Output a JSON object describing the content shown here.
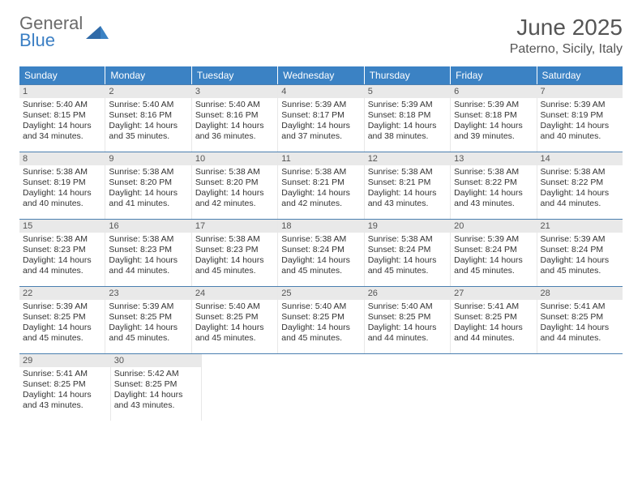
{
  "logo": {
    "text1": "General",
    "text2": "Blue"
  },
  "title": "June 2025",
  "location": "Paterno, Sicily, Italy",
  "colors": {
    "header_bg": "#3b82c4",
    "header_text": "#ffffff",
    "week_divider": "#4a7fb0",
    "daynum_bg": "#e9e9e9",
    "logo_gray": "#6a6a6a",
    "logo_blue": "#3b7fc4"
  },
  "daysOfWeek": [
    "Sunday",
    "Monday",
    "Tuesday",
    "Wednesday",
    "Thursday",
    "Friday",
    "Saturday"
  ],
  "weeks": [
    [
      {
        "n": "1",
        "sr": "5:40 AM",
        "ss": "8:15 PM",
        "dl": "14 hours and 34 minutes."
      },
      {
        "n": "2",
        "sr": "5:40 AM",
        "ss": "8:16 PM",
        "dl": "14 hours and 35 minutes."
      },
      {
        "n": "3",
        "sr": "5:40 AM",
        "ss": "8:16 PM",
        "dl": "14 hours and 36 minutes."
      },
      {
        "n": "4",
        "sr": "5:39 AM",
        "ss": "8:17 PM",
        "dl": "14 hours and 37 minutes."
      },
      {
        "n": "5",
        "sr": "5:39 AM",
        "ss": "8:18 PM",
        "dl": "14 hours and 38 minutes."
      },
      {
        "n": "6",
        "sr": "5:39 AM",
        "ss": "8:18 PM",
        "dl": "14 hours and 39 minutes."
      },
      {
        "n": "7",
        "sr": "5:39 AM",
        "ss": "8:19 PM",
        "dl": "14 hours and 40 minutes."
      }
    ],
    [
      {
        "n": "8",
        "sr": "5:38 AM",
        "ss": "8:19 PM",
        "dl": "14 hours and 40 minutes."
      },
      {
        "n": "9",
        "sr": "5:38 AM",
        "ss": "8:20 PM",
        "dl": "14 hours and 41 minutes."
      },
      {
        "n": "10",
        "sr": "5:38 AM",
        "ss": "8:20 PM",
        "dl": "14 hours and 42 minutes."
      },
      {
        "n": "11",
        "sr": "5:38 AM",
        "ss": "8:21 PM",
        "dl": "14 hours and 42 minutes."
      },
      {
        "n": "12",
        "sr": "5:38 AM",
        "ss": "8:21 PM",
        "dl": "14 hours and 43 minutes."
      },
      {
        "n": "13",
        "sr": "5:38 AM",
        "ss": "8:22 PM",
        "dl": "14 hours and 43 minutes."
      },
      {
        "n": "14",
        "sr": "5:38 AM",
        "ss": "8:22 PM",
        "dl": "14 hours and 44 minutes."
      }
    ],
    [
      {
        "n": "15",
        "sr": "5:38 AM",
        "ss": "8:23 PM",
        "dl": "14 hours and 44 minutes."
      },
      {
        "n": "16",
        "sr": "5:38 AM",
        "ss": "8:23 PM",
        "dl": "14 hours and 44 minutes."
      },
      {
        "n": "17",
        "sr": "5:38 AM",
        "ss": "8:23 PM",
        "dl": "14 hours and 45 minutes."
      },
      {
        "n": "18",
        "sr": "5:38 AM",
        "ss": "8:24 PM",
        "dl": "14 hours and 45 minutes."
      },
      {
        "n": "19",
        "sr": "5:38 AM",
        "ss": "8:24 PM",
        "dl": "14 hours and 45 minutes."
      },
      {
        "n": "20",
        "sr": "5:39 AM",
        "ss": "8:24 PM",
        "dl": "14 hours and 45 minutes."
      },
      {
        "n": "21",
        "sr": "5:39 AM",
        "ss": "8:24 PM",
        "dl": "14 hours and 45 minutes."
      }
    ],
    [
      {
        "n": "22",
        "sr": "5:39 AM",
        "ss": "8:25 PM",
        "dl": "14 hours and 45 minutes."
      },
      {
        "n": "23",
        "sr": "5:39 AM",
        "ss": "8:25 PM",
        "dl": "14 hours and 45 minutes."
      },
      {
        "n": "24",
        "sr": "5:40 AM",
        "ss": "8:25 PM",
        "dl": "14 hours and 45 minutes."
      },
      {
        "n": "25",
        "sr": "5:40 AM",
        "ss": "8:25 PM",
        "dl": "14 hours and 45 minutes."
      },
      {
        "n": "26",
        "sr": "5:40 AM",
        "ss": "8:25 PM",
        "dl": "14 hours and 44 minutes."
      },
      {
        "n": "27",
        "sr": "5:41 AM",
        "ss": "8:25 PM",
        "dl": "14 hours and 44 minutes."
      },
      {
        "n": "28",
        "sr": "5:41 AM",
        "ss": "8:25 PM",
        "dl": "14 hours and 44 minutes."
      }
    ],
    [
      {
        "n": "29",
        "sr": "5:41 AM",
        "ss": "8:25 PM",
        "dl": "14 hours and 43 minutes."
      },
      {
        "n": "30",
        "sr": "5:42 AM",
        "ss": "8:25 PM",
        "dl": "14 hours and 43 minutes."
      },
      null,
      null,
      null,
      null,
      null
    ]
  ],
  "labels": {
    "sunrise": "Sunrise: ",
    "sunset": "Sunset: ",
    "daylight": "Daylight: "
  }
}
